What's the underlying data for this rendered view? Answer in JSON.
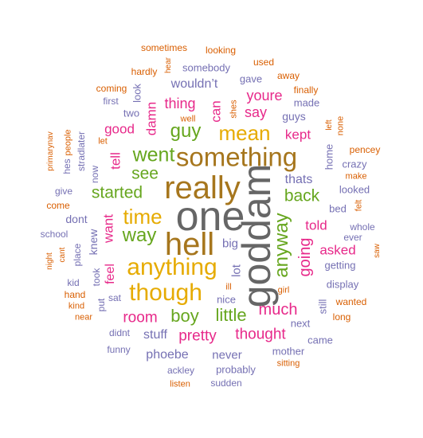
{
  "cloud": {
    "colors": {
      "orange": "#d95f02",
      "purple": "#7570b3",
      "magenta": "#e7298a",
      "green": "#66a61e",
      "gold": "#e6ab02",
      "brown": "#a6761d",
      "gray": "#666666",
      "teal": "#1b9e77"
    },
    "words": [
      {
        "text": "one",
        "color": "gray",
        "weight": 1.0
      },
      {
        "text": "goddam",
        "color": "gray",
        "weight": 0.98
      },
      {
        "text": "really",
        "color": "brown",
        "weight": 0.86
      },
      {
        "text": "hell",
        "color": "brown",
        "weight": 0.85
      },
      {
        "text": "something",
        "color": "brown",
        "weight": 0.76
      },
      {
        "text": "anything",
        "color": "gold",
        "weight": 0.72
      },
      {
        "text": "though",
        "color": "gold",
        "weight": 0.72
      },
      {
        "text": "mean",
        "color": "gold",
        "weight": 0.63
      },
      {
        "text": "time",
        "color": "gold",
        "weight": 0.63
      },
      {
        "text": "went",
        "color": "green",
        "weight": 0.6
      },
      {
        "text": "anyway",
        "color": "green",
        "weight": 0.58
      },
      {
        "text": "guy",
        "color": "green",
        "weight": 0.58
      },
      {
        "text": "way",
        "color": "green",
        "weight": 0.57
      },
      {
        "text": "boy",
        "color": "green",
        "weight": 0.55
      },
      {
        "text": "little",
        "color": "green",
        "weight": 0.55
      },
      {
        "text": "started",
        "color": "green",
        "weight": 0.53
      },
      {
        "text": "see",
        "color": "green",
        "weight": 0.53
      },
      {
        "text": "back",
        "color": "green",
        "weight": 0.52
      },
      {
        "text": "going",
        "color": "magenta",
        "weight": 0.5
      },
      {
        "text": "much",
        "color": "magenta",
        "weight": 0.5
      },
      {
        "text": "room",
        "color": "magenta",
        "weight": 0.48
      },
      {
        "text": "pretty",
        "color": "magenta",
        "weight": 0.48
      },
      {
        "text": "thought",
        "color": "magenta",
        "weight": 0.48
      },
      {
        "text": "thing",
        "color": "magenta",
        "weight": 0.46
      },
      {
        "text": "say",
        "color": "magenta",
        "weight": 0.46
      },
      {
        "text": "youre",
        "color": "magenta",
        "weight": 0.46
      },
      {
        "text": "kept",
        "color": "magenta",
        "weight": 0.44
      },
      {
        "text": "told",
        "color": "magenta",
        "weight": 0.44
      },
      {
        "text": "asked",
        "color": "magenta",
        "weight": 0.42
      },
      {
        "text": "good",
        "color": "magenta",
        "weight": 0.42
      },
      {
        "text": "damn",
        "color": "magenta",
        "weight": 0.42
      },
      {
        "text": "can",
        "color": "magenta",
        "weight": 0.42
      },
      {
        "text": "tell",
        "color": "magenta",
        "weight": 0.42
      },
      {
        "text": "want",
        "color": "magenta",
        "weight": 0.42
      },
      {
        "text": "feel",
        "color": "magenta",
        "weight": 0.4
      },
      {
        "text": "thats",
        "color": "purple",
        "weight": 0.4
      },
      {
        "text": "wouldn’t",
        "color": "purple",
        "weight": 0.4
      },
      {
        "text": "stuff",
        "color": "purple",
        "weight": 0.4
      },
      {
        "text": "phoebe",
        "color": "purple",
        "weight": 0.4
      },
      {
        "text": "never",
        "color": "purple",
        "weight": 0.38
      },
      {
        "text": "big",
        "color": "purple",
        "weight": 0.36
      },
      {
        "text": "lot",
        "color": "purple",
        "weight": 0.36
      },
      {
        "text": "dont",
        "color": "purple",
        "weight": 0.34
      },
      {
        "text": "knew",
        "color": "purple",
        "weight": 0.34
      },
      {
        "text": "guys",
        "color": "purple",
        "weight": 0.34
      },
      {
        "text": "looked",
        "color": "purple",
        "weight": 0.32
      },
      {
        "text": "bed",
        "color": "purple",
        "weight": 0.32
      },
      {
        "text": "getting",
        "color": "purple",
        "weight": 0.32
      },
      {
        "text": "display",
        "color": "purple",
        "weight": 0.32
      },
      {
        "text": "crazy",
        "color": "purple",
        "weight": 0.3
      },
      {
        "text": "home",
        "color": "purple",
        "weight": 0.3
      },
      {
        "text": "made",
        "color": "purple",
        "weight": 0.3
      },
      {
        "text": "gave",
        "color": "purple",
        "weight": 0.3
      },
      {
        "text": "somebody",
        "color": "purple",
        "weight": 0.3
      },
      {
        "text": "look",
        "color": "purple",
        "weight": 0.3
      },
      {
        "text": "two",
        "color": "purple",
        "weight": 0.3
      },
      {
        "text": "nice",
        "color": "purple",
        "weight": 0.3
      },
      {
        "text": "probably",
        "color": "purple",
        "weight": 0.3
      },
      {
        "text": "mother",
        "color": "purple",
        "weight": 0.3
      },
      {
        "text": "came",
        "color": "purple",
        "weight": 0.3
      },
      {
        "text": "next",
        "color": "purple",
        "weight": 0.3
      },
      {
        "text": "still",
        "color": "purple",
        "weight": 0.3
      },
      {
        "text": "ever",
        "color": "purple",
        "weight": 0.28
      },
      {
        "text": "whole",
        "color": "purple",
        "weight": 0.28
      },
      {
        "text": "took",
        "color": "purple",
        "weight": 0.28
      },
      {
        "text": "put",
        "color": "purple",
        "weight": 0.28
      },
      {
        "text": "ackley",
        "color": "purple",
        "weight": 0.28
      },
      {
        "text": "sudden",
        "color": "purple",
        "weight": 0.28
      },
      {
        "text": "funny",
        "color": "purple",
        "weight": 0.28
      },
      {
        "text": "school",
        "color": "purple",
        "weight": 0.28
      },
      {
        "text": "give",
        "color": "purple",
        "weight": 0.28
      },
      {
        "text": "now",
        "color": "purple",
        "weight": 0.28
      },
      {
        "text": "place",
        "color": "purple",
        "weight": 0.28
      },
      {
        "text": "kid",
        "color": "purple",
        "weight": 0.28
      },
      {
        "text": "sat",
        "color": "purple",
        "weight": 0.28
      },
      {
        "text": "stradlater",
        "color": "purple",
        "weight": 0.28
      },
      {
        "text": "first",
        "color": "purple",
        "weight": 0.26
      },
      {
        "text": "didnt",
        "color": "purple",
        "weight": 0.26
      },
      {
        "text": "hes",
        "color": "purple",
        "weight": 0.26
      },
      {
        "text": "shes",
        "color": "orange",
        "weight": 0.26
      },
      {
        "text": "pencey",
        "color": "orange",
        "weight": 0.26
      },
      {
        "text": "make",
        "color": "orange",
        "weight": 0.24
      },
      {
        "text": "felt",
        "color": "orange",
        "weight": 0.24
      },
      {
        "text": "wanted",
        "color": "orange",
        "weight": 0.24
      },
      {
        "text": "long",
        "color": "orange",
        "weight": 0.24
      },
      {
        "text": "saw",
        "color": "orange",
        "weight": 0.22
      },
      {
        "text": "left",
        "color": "orange",
        "weight": 0.22
      },
      {
        "text": "none",
        "color": "orange",
        "weight": 0.22
      },
      {
        "text": "finally",
        "color": "orange",
        "weight": 0.24
      },
      {
        "text": "away",
        "color": "orange",
        "weight": 0.24
      },
      {
        "text": "used",
        "color": "orange",
        "weight": 0.24
      },
      {
        "text": "looking",
        "color": "orange",
        "weight": 0.24
      },
      {
        "text": "sometimes",
        "color": "orange",
        "weight": 0.24
      },
      {
        "text": "hear",
        "color": "orange",
        "weight": 0.22
      },
      {
        "text": "hardly",
        "color": "orange",
        "weight": 0.24
      },
      {
        "text": "coming",
        "color": "orange",
        "weight": 0.24
      },
      {
        "text": "let",
        "color": "orange",
        "weight": 0.22
      },
      {
        "text": "people",
        "color": "orange",
        "weight": 0.22
      },
      {
        "text": "primarynav",
        "color": "orange",
        "weight": 0.22
      },
      {
        "text": "come",
        "color": "orange",
        "weight": 0.24
      },
      {
        "text": "cant",
        "color": "orange",
        "weight": 0.22
      },
      {
        "text": "night",
        "color": "orange",
        "weight": 0.22
      },
      {
        "text": "hand",
        "color": "orange",
        "weight": 0.24
      },
      {
        "text": "kind",
        "color": "orange",
        "weight": 0.22
      },
      {
        "text": "near",
        "color": "orange",
        "weight": 0.22
      },
      {
        "text": "well",
        "color": "orange",
        "weight": 0.22
      },
      {
        "text": "ill",
        "color": "orange",
        "weight": 0.22
      },
      {
        "text": "girl",
        "color": "orange",
        "weight": 0.22
      },
      {
        "text": "sitting",
        "color": "orange",
        "weight": 0.22
      },
      {
        "text": "listen",
        "color": "orange",
        "weight": 0.22
      }
    ]
  }
}
